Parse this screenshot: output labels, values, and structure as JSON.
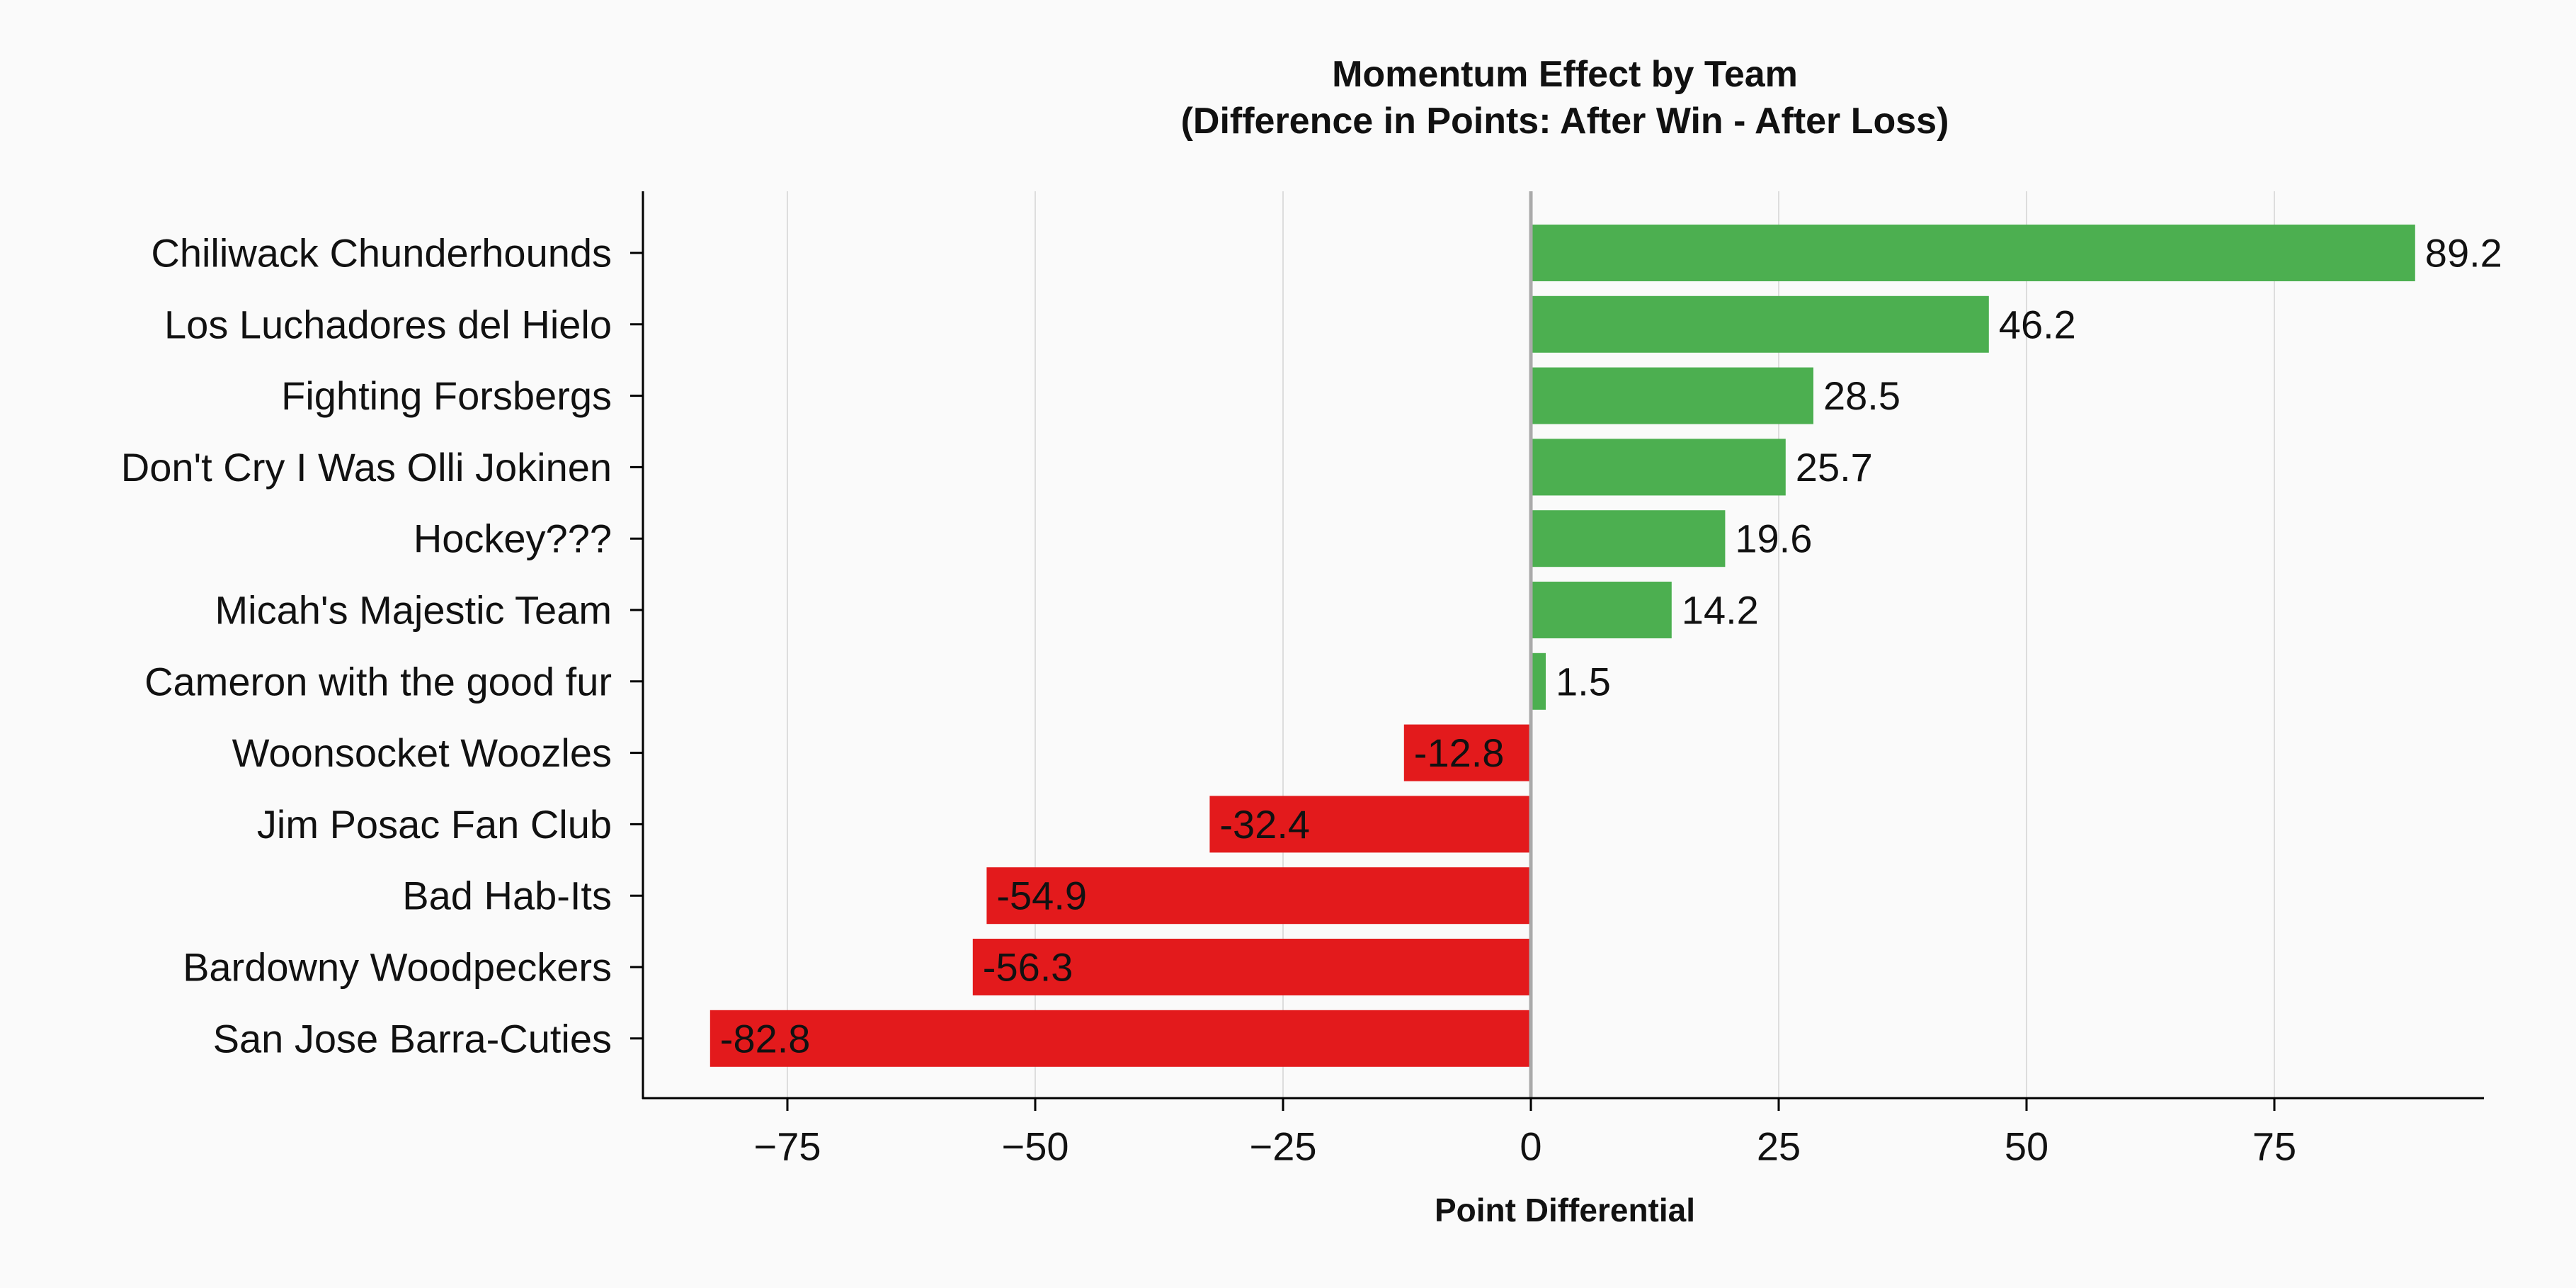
{
  "chart_data": {
    "type": "bar",
    "orientation": "horizontal",
    "title_line1": "Momentum Effect by Team",
    "title_line2": "(Difference in Points: After Win - After Loss)",
    "xlabel": "Point Differential",
    "ylabel": "",
    "xlim": [
      -90,
      92
    ],
    "xticks": [
      -75,
      -50,
      -25,
      0,
      25,
      50,
      75
    ],
    "xtick_labels": [
      "−75",
      "−50",
      "−25",
      "0",
      "25",
      "50",
      "75"
    ],
    "grid": "vertical",
    "categories": [
      "Chiliwack Chunderhounds",
      "Los Luchadores del Hielo",
      "Fighting Forsbergs",
      "Don't Cry I Was Olli Jokinen",
      "Hockey???",
      "Micah's Majestic Team",
      "Cameron with the good fur",
      "Woonsocket Woozles",
      "Jim Posac Fan Club",
      "Bad Hab-Its",
      "Bardowny Woodpeckers",
      "San Jose Barra-Cuties"
    ],
    "values": [
      89.2,
      46.2,
      28.5,
      25.7,
      19.6,
      14.2,
      1.5,
      -12.8,
      -32.4,
      -54.9,
      -56.3,
      -82.8
    ],
    "value_labels": [
      "89.2",
      "46.2",
      "28.5",
      "25.7",
      "19.6",
      "14.2",
      "1.5",
      "-12.8",
      "-32.4",
      "-54.9",
      "-56.3",
      "-82.8"
    ],
    "colors": {
      "positive": "#4caf50",
      "negative": "#e31a1c",
      "grid": "#dddddd",
      "axis": "#000000",
      "zero_line": "#aaaaaa"
    }
  }
}
